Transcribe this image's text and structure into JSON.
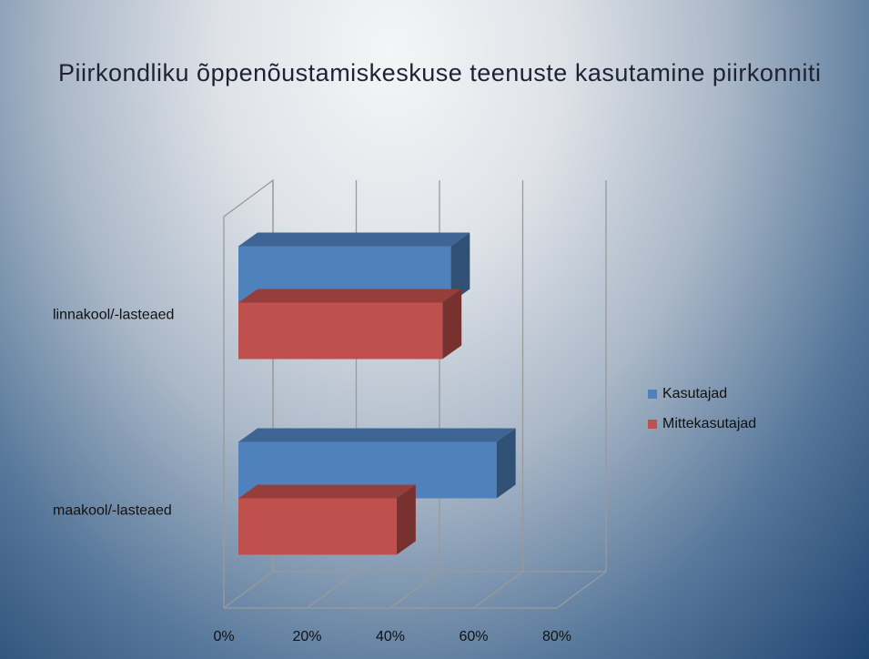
{
  "chart_data": {
    "type": "bar3d",
    "title": "Piirkondliku õppenõustamiskeskuse teenuste kasutamine piirkonniti",
    "categories": [
      "linnakool/-lasteaed",
      "maakool/-lasteaed"
    ],
    "series": [
      {
        "name": "Kasutajad",
        "color": "#4f81bd",
        "values": [
          51,
          62
        ]
      },
      {
        "name": "Mittekasutajad",
        "color": "#c0504d",
        "values": [
          49,
          38
        ]
      }
    ],
    "xlim": [
      0,
      80
    ],
    "xticks": [
      {
        "value": 0,
        "label": "0%"
      },
      {
        "value": 20,
        "label": "20%"
      },
      {
        "value": 40,
        "label": "40%"
      },
      {
        "value": 60,
        "label": "60%"
      },
      {
        "value": 80,
        "label": "80%"
      }
    ],
    "grid": true,
    "legend": "right"
  }
}
